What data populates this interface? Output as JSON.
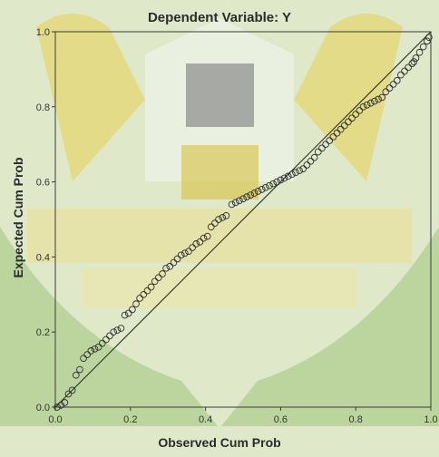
{
  "chart_data": {
    "type": "scatter",
    "title": "Dependent Variable: Y",
    "xlabel": "Observed Cum Prob",
    "ylabel": "Expected Cum Prob",
    "xlim": [
      0,
      1
    ],
    "ylim": [
      0,
      1
    ],
    "x_ticks": [
      "0.0",
      "0.2",
      "0.4",
      "0.6",
      "0.8",
      "1.0"
    ],
    "y_ticks": [
      "0.0",
      "0.2",
      "0.4",
      "0.6",
      "0.8",
      "1.0"
    ],
    "reference_line": {
      "x": [
        0,
        1
      ],
      "y": [
        0,
        1
      ]
    },
    "points": [
      [
        0.005,
        0.0
      ],
      [
        0.015,
        0.005
      ],
      [
        0.025,
        0.012
      ],
      [
        0.035,
        0.035
      ],
      [
        0.045,
        0.045
      ],
      [
        0.055,
        0.085
      ],
      [
        0.065,
        0.1
      ],
      [
        0.075,
        0.13
      ],
      [
        0.085,
        0.14
      ],
      [
        0.095,
        0.15
      ],
      [
        0.105,
        0.155
      ],
      [
        0.115,
        0.16
      ],
      [
        0.125,
        0.17
      ],
      [
        0.135,
        0.18
      ],
      [
        0.145,
        0.19
      ],
      [
        0.155,
        0.2
      ],
      [
        0.165,
        0.205
      ],
      [
        0.175,
        0.21
      ],
      [
        0.185,
        0.245
      ],
      [
        0.195,
        0.25
      ],
      [
        0.205,
        0.26
      ],
      [
        0.215,
        0.275
      ],
      [
        0.225,
        0.29
      ],
      [
        0.235,
        0.3
      ],
      [
        0.245,
        0.31
      ],
      [
        0.255,
        0.32
      ],
      [
        0.265,
        0.335
      ],
      [
        0.275,
        0.345
      ],
      [
        0.285,
        0.355
      ],
      [
        0.295,
        0.37
      ],
      [
        0.305,
        0.375
      ],
      [
        0.315,
        0.385
      ],
      [
        0.325,
        0.395
      ],
      [
        0.335,
        0.405
      ],
      [
        0.345,
        0.41
      ],
      [
        0.355,
        0.415
      ],
      [
        0.365,
        0.425
      ],
      [
        0.375,
        0.435
      ],
      [
        0.385,
        0.44
      ],
      [
        0.395,
        0.45
      ],
      [
        0.405,
        0.455
      ],
      [
        0.415,
        0.48
      ],
      [
        0.425,
        0.49
      ],
      [
        0.435,
        0.5
      ],
      [
        0.445,
        0.505
      ],
      [
        0.455,
        0.51
      ],
      [
        0.47,
        0.54
      ],
      [
        0.48,
        0.545
      ],
      [
        0.49,
        0.55
      ],
      [
        0.5,
        0.555
      ],
      [
        0.51,
        0.56
      ],
      [
        0.52,
        0.565
      ],
      [
        0.53,
        0.57
      ],
      [
        0.54,
        0.575
      ],
      [
        0.55,
        0.58
      ],
      [
        0.56,
        0.585
      ],
      [
        0.57,
        0.59
      ],
      [
        0.58,
        0.595
      ],
      [
        0.59,
        0.6
      ],
      [
        0.6,
        0.605
      ],
      [
        0.61,
        0.61
      ],
      [
        0.62,
        0.615
      ],
      [
        0.63,
        0.62
      ],
      [
        0.64,
        0.625
      ],
      [
        0.65,
        0.63
      ],
      [
        0.66,
        0.635
      ],
      [
        0.67,
        0.645
      ],
      [
        0.68,
        0.655
      ],
      [
        0.69,
        0.665
      ],
      [
        0.7,
        0.68
      ],
      [
        0.71,
        0.69
      ],
      [
        0.72,
        0.7
      ],
      [
        0.73,
        0.71
      ],
      [
        0.74,
        0.72
      ],
      [
        0.75,
        0.73
      ],
      [
        0.76,
        0.74
      ],
      [
        0.77,
        0.75
      ],
      [
        0.78,
        0.76
      ],
      [
        0.79,
        0.77
      ],
      [
        0.8,
        0.78
      ],
      [
        0.81,
        0.79
      ],
      [
        0.82,
        0.8
      ],
      [
        0.83,
        0.805
      ],
      [
        0.84,
        0.81
      ],
      [
        0.85,
        0.815
      ],
      [
        0.86,
        0.82
      ],
      [
        0.87,
        0.825
      ],
      [
        0.88,
        0.84
      ],
      [
        0.89,
        0.85
      ],
      [
        0.9,
        0.86
      ],
      [
        0.91,
        0.87
      ],
      [
        0.92,
        0.885
      ],
      [
        0.93,
        0.895
      ],
      [
        0.94,
        0.905
      ],
      [
        0.95,
        0.915
      ],
      [
        0.955,
        0.92
      ],
      [
        0.96,
        0.93
      ],
      [
        0.97,
        0.945
      ],
      [
        0.98,
        0.96
      ],
      [
        0.99,
        0.975
      ],
      [
        0.995,
        0.985
      ]
    ]
  }
}
